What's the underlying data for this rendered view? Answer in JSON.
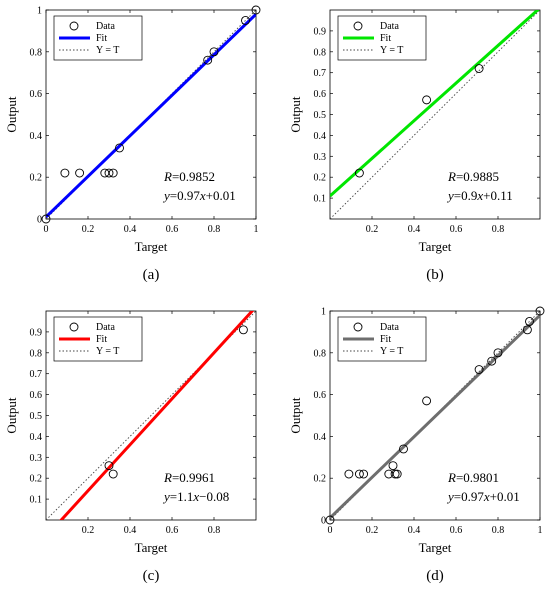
{
  "chart_data": [
    {
      "type": "scatter",
      "caption": "(a)",
      "xlabel": "Target",
      "ylabel": "Output",
      "xlim": [
        0,
        1
      ],
      "ylim": [
        0,
        1
      ],
      "xticks": [
        "0",
        "0.2",
        "0.4",
        "0.6",
        "0.8",
        "1"
      ],
      "yticks": [
        "0",
        "0.2",
        "0.4",
        "0.6",
        "0.8",
        "1"
      ],
      "fit_color": "#0000ff",
      "fit": {
        "slope": 0.97,
        "intercept": 0.01
      },
      "legend": [
        "Data",
        "Fit",
        "Y = T"
      ],
      "annotation": {
        "r": "=0.9852",
        "eq": "=0.97",
        "eq_tail": "+0.01"
      },
      "points": [
        [
          0,
          0
        ],
        [
          0.09,
          0.22
        ],
        [
          0.16,
          0.22
        ],
        [
          0.28,
          0.22
        ],
        [
          0.3,
          0.22
        ],
        [
          0.32,
          0.22
        ],
        [
          0.35,
          0.34
        ],
        [
          0.77,
          0.76
        ],
        [
          0.8,
          0.8
        ],
        [
          0.95,
          0.95
        ],
        [
          1.0,
          1.0
        ]
      ]
    },
    {
      "type": "scatter",
      "caption": "(b)",
      "xlabel": "Target",
      "ylabel": "Output",
      "xlim": [
        0,
        1
      ],
      "ylim": [
        0,
        1
      ],
      "xticks": [
        "0.2",
        "0.4",
        "0.6",
        "0.8"
      ],
      "yticks": [
        "0.1",
        "0.2",
        "0.3",
        "0.4",
        "0.5",
        "0.6",
        "0.7",
        "0.8",
        "0.9"
      ],
      "fit_color": "#00e600",
      "fit": {
        "slope": 0.9,
        "intercept": 0.11
      },
      "legend": [
        "Data",
        "Fit",
        "Y = T"
      ],
      "annotation": {
        "r": "=0.9885",
        "eq": "=0.9",
        "eq_tail": "+0.11"
      },
      "points": [
        [
          0.14,
          0.22
        ],
        [
          0.46,
          0.57
        ],
        [
          0.71,
          0.72
        ]
      ]
    },
    {
      "type": "scatter",
      "caption": "(c)",
      "xlabel": "Target",
      "ylabel": "Output",
      "xlim": [
        0,
        1
      ],
      "ylim": [
        0,
        1
      ],
      "xticks": [
        "0.2",
        "0.4",
        "0.6",
        "0.8"
      ],
      "yticks": [
        "0.1",
        "0.2",
        "0.3",
        "0.4",
        "0.5",
        "0.6",
        "0.7",
        "0.8",
        "0.9"
      ],
      "fit_color": "#ff0000",
      "fit": {
        "slope": 1.1,
        "intercept": -0.08
      },
      "legend": [
        "Data",
        "Fit",
        "Y = T"
      ],
      "annotation": {
        "r": "=0.9961",
        "eq": "=1.1",
        "eq_tail": "−0.08"
      },
      "points": [
        [
          0.3,
          0.26
        ],
        [
          0.32,
          0.22
        ],
        [
          0.94,
          0.91
        ]
      ]
    },
    {
      "type": "scatter",
      "caption": "(d)",
      "xlabel": "Target",
      "ylabel": "Output",
      "xlim": [
        0,
        1
      ],
      "ylim": [
        0,
        1
      ],
      "xticks": [
        "0",
        "0.2",
        "0.4",
        "0.6",
        "0.8",
        "1"
      ],
      "yticks": [
        "0",
        "0.2",
        "0.4",
        "0.6",
        "0.8",
        "1"
      ],
      "fit_color": "#6e6e6e",
      "fit": {
        "slope": 0.97,
        "intercept": 0.01
      },
      "legend": [
        "Data",
        "Fit",
        "Y = T"
      ],
      "annotation": {
        "r": "=0.9801",
        "eq": "=0.97",
        "eq_tail": "+0.01"
      },
      "points": [
        [
          0,
          0
        ],
        [
          0.09,
          0.22
        ],
        [
          0.14,
          0.22
        ],
        [
          0.16,
          0.22
        ],
        [
          0.28,
          0.22
        ],
        [
          0.3,
          0.26
        ],
        [
          0.31,
          0.22
        ],
        [
          0.32,
          0.22
        ],
        [
          0.35,
          0.34
        ],
        [
          0.46,
          0.57
        ],
        [
          0.71,
          0.72
        ],
        [
          0.77,
          0.76
        ],
        [
          0.8,
          0.8
        ],
        [
          0.94,
          0.91
        ],
        [
          0.95,
          0.95
        ],
        [
          1.0,
          1.0
        ]
      ]
    }
  ]
}
